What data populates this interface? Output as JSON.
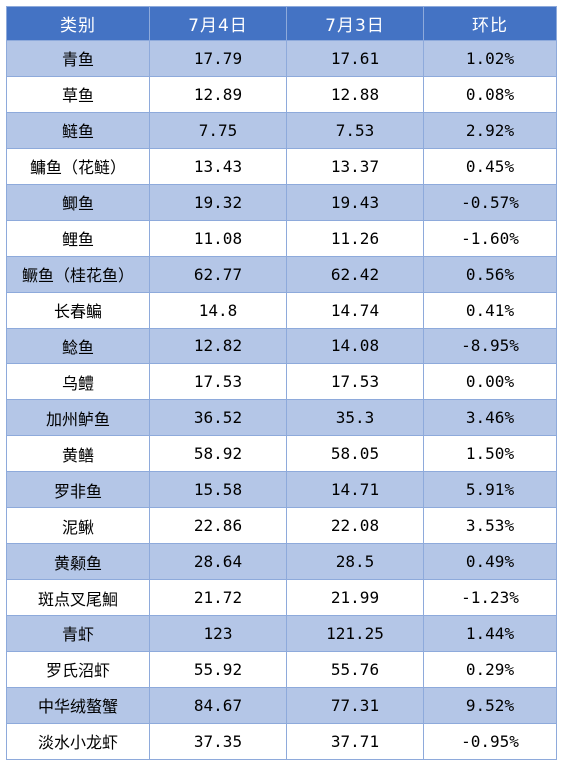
{
  "table": {
    "headers": [
      "类别",
      "7月4日",
      "7月3日",
      "环比"
    ],
    "rows": [
      {
        "category": "青鱼",
        "jul4": "17.79",
        "jul3": "17.61",
        "change": "1.02%"
      },
      {
        "category": "草鱼",
        "jul4": "12.89",
        "jul3": "12.88",
        "change": "0.08%"
      },
      {
        "category": "鲢鱼",
        "jul4": "7.75",
        "jul3": "7.53",
        "change": "2.92%"
      },
      {
        "category": "鳙鱼（花鲢）",
        "jul4": "13.43",
        "jul3": "13.37",
        "change": "0.45%"
      },
      {
        "category": "鲫鱼",
        "jul4": "19.32",
        "jul3": "19.43",
        "change": "-0.57%"
      },
      {
        "category": "鲤鱼",
        "jul4": "11.08",
        "jul3": "11.26",
        "change": "-1.60%"
      },
      {
        "category": "鳜鱼（桂花鱼）",
        "jul4": "62.77",
        "jul3": "62.42",
        "change": "0.56%"
      },
      {
        "category": "长春鳊",
        "jul4": "14.8",
        "jul3": "14.74",
        "change": "0.41%"
      },
      {
        "category": "鲶鱼",
        "jul4": "12.82",
        "jul3": "14.08",
        "change": "-8.95%"
      },
      {
        "category": "乌鳢",
        "jul4": "17.53",
        "jul3": "17.53",
        "change": "0.00%"
      },
      {
        "category": "加州鲈鱼",
        "jul4": "36.52",
        "jul3": "35.3",
        "change": "3.46%"
      },
      {
        "category": "黄鳝",
        "jul4": "58.92",
        "jul3": "58.05",
        "change": "1.50%"
      },
      {
        "category": "罗非鱼",
        "jul4": "15.58",
        "jul3": "14.71",
        "change": "5.91%"
      },
      {
        "category": "泥鳅",
        "jul4": "22.86",
        "jul3": "22.08",
        "change": "3.53%"
      },
      {
        "category": "黄颡鱼",
        "jul4": "28.64",
        "jul3": "28.5",
        "change": "0.49%"
      },
      {
        "category": "斑点叉尾鮰",
        "jul4": "21.72",
        "jul3": "21.99",
        "change": "-1.23%"
      },
      {
        "category": "青虾",
        "jul4": "123",
        "jul3": "121.25",
        "change": "1.44%"
      },
      {
        "category": "罗氏沼虾",
        "jul4": "55.92",
        "jul3": "55.76",
        "change": "0.29%"
      },
      {
        "category": "中华绒螯蟹",
        "jul4": "84.67",
        "jul3": "77.31",
        "change": "9.52%"
      },
      {
        "category": "淡水小龙虾",
        "jul4": "37.35",
        "jul3": "37.71",
        "change": "-0.95%"
      }
    ]
  },
  "colors": {
    "header_bg": "#4473c4",
    "band_bg": "#b4c6e7",
    "border": "#8eaadb"
  }
}
